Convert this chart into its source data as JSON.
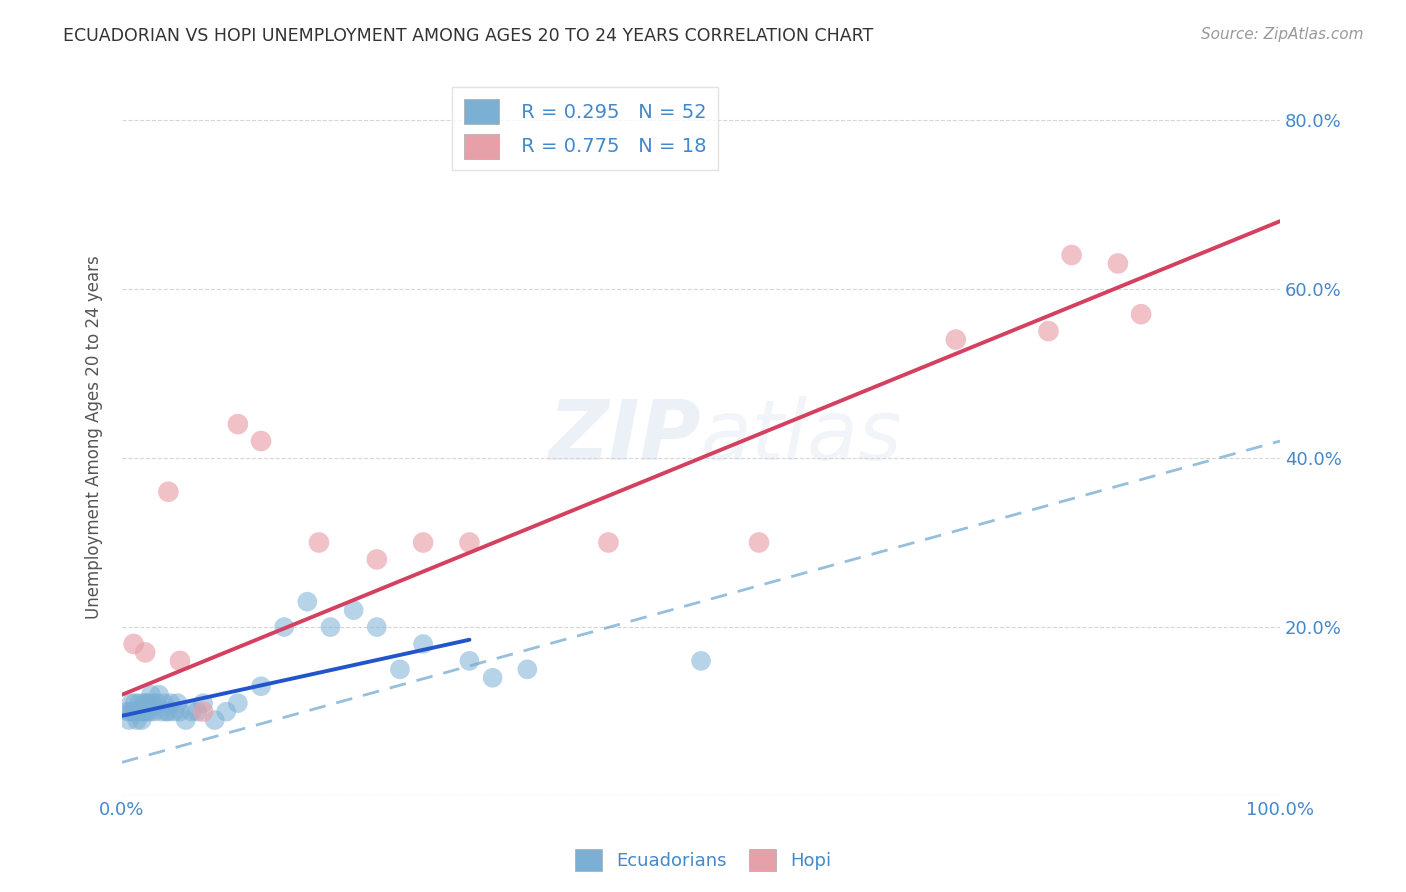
{
  "title": "ECUADORIAN VS HOPI UNEMPLOYMENT AMONG AGES 20 TO 24 YEARS CORRELATION CHART",
  "source": "Source: ZipAtlas.com",
  "ylabel": "Unemployment Among Ages 20 to 24 years",
  "xlim": [
    0,
    1.0
  ],
  "ylim": [
    0,
    0.85
  ],
  "legend_R1": "R = 0.295",
  "legend_N1": "N = 52",
  "legend_R2": "R = 0.775",
  "legend_N2": "N = 18",
  "blue_color": "#7bafd4",
  "pink_color": "#e8a0a8",
  "blue_line_color": "#2255cc",
  "pink_line_color": "#d44060",
  "dash_line_color": "#7bafd4",
  "text_color": "#4488cc",
  "watermark": "ZIPatlas",
  "ecu_x": [
    0.005,
    0.006,
    0.007,
    0.008,
    0.009,
    0.01,
    0.011,
    0.012,
    0.013,
    0.014,
    0.015,
    0.016,
    0.017,
    0.018,
    0.019,
    0.02,
    0.021,
    0.022,
    0.023,
    0.024,
    0.025,
    0.026,
    0.028,
    0.03,
    0.032,
    0.034,
    0.036,
    0.038,
    0.04,
    0.042,
    0.045,
    0.048,
    0.05,
    0.055,
    0.06,
    0.065,
    0.07,
    0.08,
    0.09,
    0.1,
    0.12,
    0.14,
    0.16,
    0.18,
    0.2,
    0.22,
    0.24,
    0.26,
    0.3,
    0.32,
    0.35,
    0.5
  ],
  "ecu_y": [
    0.1,
    0.09,
    0.1,
    0.11,
    0.1,
    0.1,
    0.11,
    0.1,
    0.09,
    0.1,
    0.11,
    0.1,
    0.09,
    0.1,
    0.11,
    0.1,
    0.11,
    0.1,
    0.11,
    0.1,
    0.12,
    0.11,
    0.1,
    0.11,
    0.12,
    0.1,
    0.11,
    0.1,
    0.1,
    0.11,
    0.1,
    0.11,
    0.1,
    0.09,
    0.1,
    0.1,
    0.11,
    0.09,
    0.1,
    0.11,
    0.13,
    0.2,
    0.23,
    0.2,
    0.22,
    0.2,
    0.15,
    0.18,
    0.16,
    0.14,
    0.15,
    0.16
  ],
  "hopi_x": [
    0.01,
    0.02,
    0.04,
    0.05,
    0.07,
    0.1,
    0.12,
    0.17,
    0.22,
    0.26,
    0.3,
    0.42,
    0.55,
    0.72,
    0.8,
    0.82,
    0.86,
    0.88
  ],
  "hopi_y": [
    0.18,
    0.17,
    0.36,
    0.16,
    0.1,
    0.44,
    0.42,
    0.3,
    0.28,
    0.3,
    0.3,
    0.3,
    0.3,
    0.54,
    0.55,
    0.64,
    0.63,
    0.57
  ],
  "blue_line_x0": 0.0,
  "blue_line_x1": 0.3,
  "blue_line_y0": 0.095,
  "blue_line_y1": 0.185,
  "dash_line_x0": 0.0,
  "dash_line_x1": 1.0,
  "dash_line_y0": 0.04,
  "dash_line_y1": 0.42,
  "pink_line_x0": 0.0,
  "pink_line_x1": 1.0,
  "pink_line_y0": 0.12,
  "pink_line_y1": 0.68
}
